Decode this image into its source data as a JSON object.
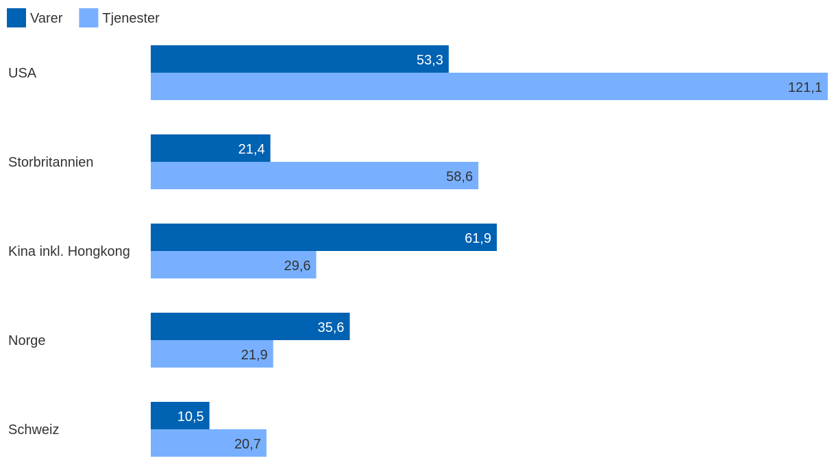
{
  "chart_data": {
    "type": "bar",
    "orientation": "horizontal",
    "title": "",
    "xlabel": "",
    "ylabel": "",
    "categories": [
      "USA",
      "Storbritannien",
      "Kina inkl. Hongkong",
      "Norge",
      "Schweiz"
    ],
    "series": [
      {
        "name": "Varer",
        "color": "#0062b2",
        "label_color": "#ffffff",
        "values": [
          53.3,
          21.4,
          61.9,
          35.6,
          10.5
        ]
      },
      {
        "name": "Tjenester",
        "color": "#78b0ff",
        "label_color": "#333333",
        "values": [
          121.1,
          58.6,
          29.6,
          21.9,
          20.7
        ]
      }
    ],
    "value_labels": [
      [
        "53,3",
        "21,4",
        "61,9",
        "35,6",
        "10,5"
      ],
      [
        "121,1",
        "58,6",
        "29,6",
        "21,9",
        "20,7"
      ]
    ],
    "xlim": [
      0,
      121.1
    ],
    "grid": false,
    "legend": "top-left"
  }
}
